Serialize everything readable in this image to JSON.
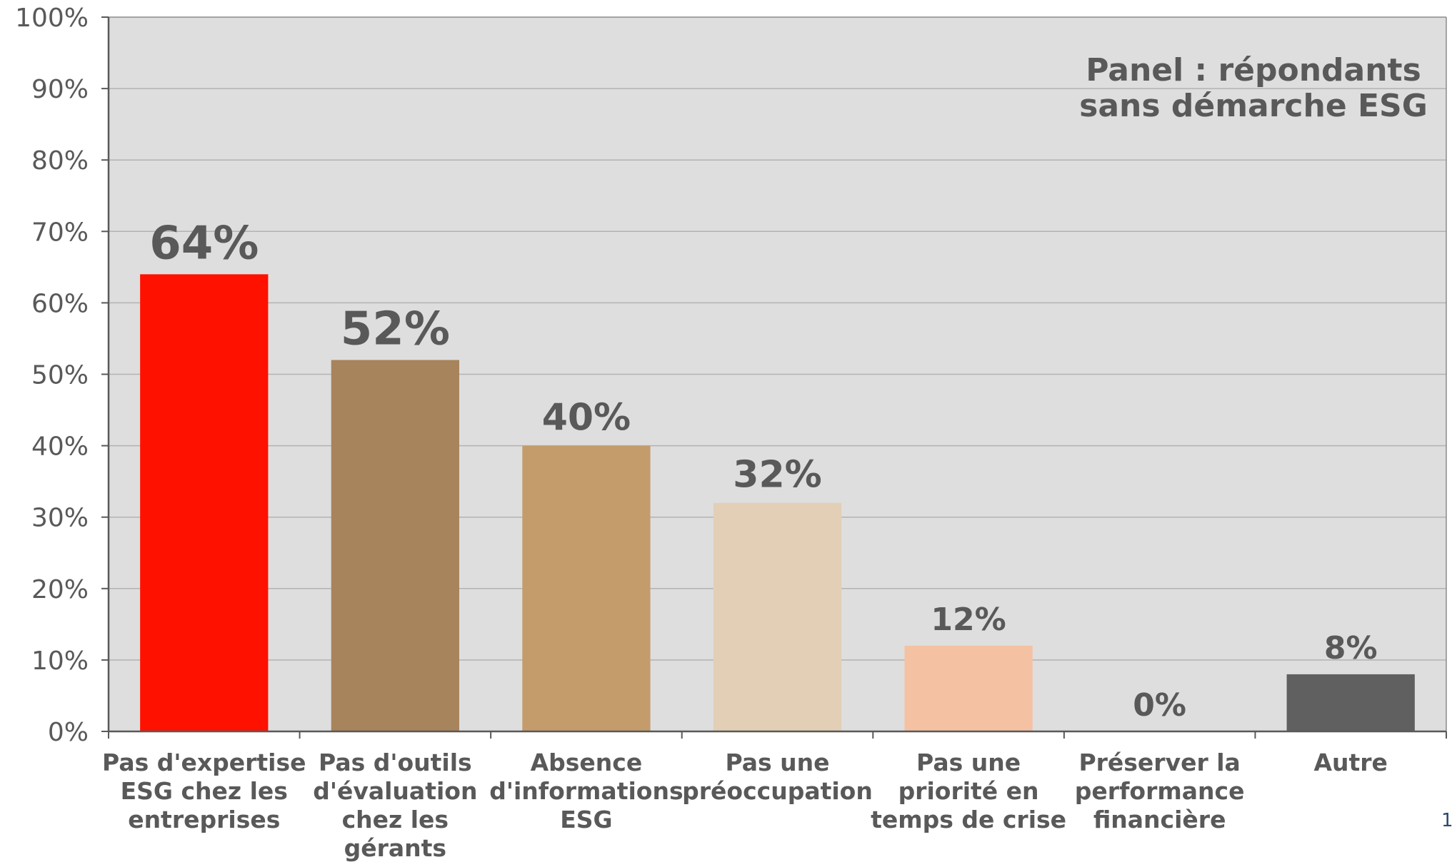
{
  "page_number": "1",
  "chart_data": {
    "type": "bar",
    "annotation": [
      "Panel : répondants",
      "sans démarche ESG"
    ],
    "categories": [
      [
        "Pas d'expertise",
        "ESG chez les",
        "entreprises"
      ],
      [
        "Pas d'outils",
        "d'évaluation",
        "chez les",
        "gérants"
      ],
      [
        "Absence",
        "d'informations",
        "ESG"
      ],
      [
        "Pas une",
        "préoccupation"
      ],
      [
        "Pas une",
        "priorité en",
        "temps de crise"
      ],
      [
        "Préserver la",
        "performance",
        "financière"
      ],
      [
        "Autre"
      ]
    ],
    "values": [
      64,
      52,
      40,
      32,
      12,
      0,
      8
    ],
    "data_labels": [
      "64%",
      "52%",
      "40%",
      "32%",
      "12%",
      "0%",
      "8%"
    ],
    "colors": [
      "#ff1100",
      "#a8845c",
      "#c49c6c",
      "#e2cfb6",
      "#f4c2a2",
      "#d9d9d9",
      "#606060"
    ],
    "ylim": [
      0,
      100
    ],
    "yticks": [
      "0%",
      "10%",
      "20%",
      "30%",
      "40%",
      "50%",
      "60%",
      "70%",
      "80%",
      "90%",
      "100%"
    ],
    "grid": true,
    "plot_background": "#dedede",
    "gridline_color": "#b3b3b3"
  }
}
